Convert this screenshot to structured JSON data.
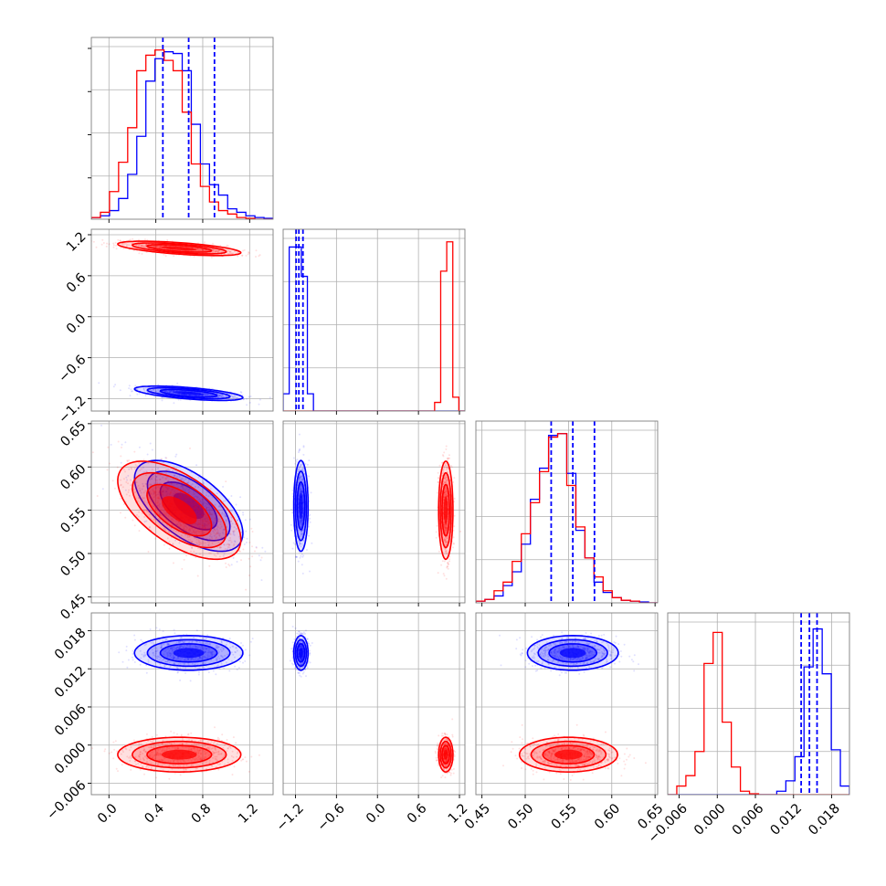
{
  "figure": {
    "type": "corner_plot",
    "colors": {
      "series_a": "#0000ff",
      "series_b": "#ff0000",
      "grid": "#b0b0b0",
      "frame": "#7f7f7f"
    }
  },
  "chart_data": {
    "type": "corner",
    "n_params": 4,
    "grid": true,
    "params": [
      {
        "range": [
          -0.15,
          1.4
        ],
        "ticks": [
          0.0,
          0.4,
          0.8,
          1.2
        ],
        "tick_labels": [
          "0.0",
          "0.4",
          "0.8",
          "1.2"
        ]
      },
      {
        "range": [
          -1.38,
          1.28
        ],
        "ticks": [
          -1.2,
          -0.6,
          0.0,
          0.6,
          1.2
        ],
        "tick_labels": [
          "−1.2",
          "−0.6",
          "0.0",
          "0.6",
          "1.2"
        ]
      },
      {
        "range": [
          0.443,
          0.653
        ],
        "ticks": [
          0.45,
          0.5,
          0.55,
          0.6,
          0.65
        ],
        "tick_labels": [
          "0.45",
          "0.50",
          "0.55",
          "0.60",
          "0.65"
        ]
      },
      {
        "range": [
          -0.0078,
          0.0208
        ],
        "ticks": [
          -0.006,
          0.0,
          0.006,
          0.012,
          0.018
        ],
        "tick_labels": [
          "−0.006",
          "0.000",
          "0.006",
          "0.012",
          "0.018"
        ]
      }
    ],
    "series": [
      {
        "color": "#0000ff",
        "means": [
          0.68,
          -1.12,
          0.555,
          0.0145
        ],
        "sds": [
          0.22,
          0.05,
          0.025,
          0.0013
        ],
        "corr": {
          "0-1": -0.6,
          "0-2": -0.6,
          "0-3": 0.0,
          "1-2": 0.0,
          "1-3": 0.0,
          "2-3": 0.0
        },
        "quantile_lines": [
          [
            0.46,
            0.68,
            0.9
          ],
          [
            -1.19,
            -1.15,
            -1.09
          ],
          [
            0.53,
            0.555,
            0.58
          ],
          [
            0.0132,
            0.0145,
            0.0157
          ]
        ],
        "hist": [
          {
            "bins": [
              -0.15,
              1.4
            ],
            "counts": [
              0.01,
              0.02,
              0.05,
              0.12,
              0.26,
              0.48,
              0.8,
              0.93,
              0.97,
              0.96,
              0.86,
              0.55,
              0.32,
              0.2,
              0.14,
              0.06,
              0.04,
              0.02,
              0.01,
              0.005
            ]
          },
          {
            "bins": [
              -1.38,
              1.28
            ],
            "counts": [
              0.1,
              0.95,
              0.95,
              0.78,
              0.1,
              0.0,
              0.0,
              0.0,
              0.0,
              0.0,
              0.0,
              0.0,
              0.0,
              0.0,
              0.0,
              0.0,
              0.0,
              0.0,
              0.0,
              0.0,
              0.0,
              0.0,
              0.0,
              0.0,
              0.0,
              0.0,
              0.0,
              0.0,
              0.0,
              0.0
            ]
          },
          {
            "bins": [
              0.443,
              0.653
            ],
            "counts": [
              0.01,
              0.02,
              0.04,
              0.1,
              0.18,
              0.34,
              0.6,
              0.78,
              0.97,
              0.98,
              0.75,
              0.42,
              0.26,
              0.12,
              0.06,
              0.03,
              0.015,
              0.01,
              0.005,
              0.0
            ]
          },
          {
            "bins": [
              -0.0078,
              0.0208
            ],
            "counts": [
              0,
              0,
              0,
              0,
              0,
              0,
              0,
              0,
              0,
              0,
              0,
              0,
              0.02,
              0.08,
              0.22,
              0.74,
              0.96,
              0.7,
              0.26,
              0.05
            ]
          }
        ]
      },
      {
        "color": "#ff0000",
        "means": [
          0.6,
          1.0,
          0.55,
          -0.0015
        ],
        "sds": [
          0.25,
          0.05,
          0.027,
          0.0013
        ],
        "corr": {
          "0-1": -0.6,
          "0-2": -0.6,
          "0-3": 0.0,
          "1-2": 0.0,
          "1-3": 0.0,
          "2-3": 0.0
        },
        "quantile_lines": null,
        "hist": [
          {
            "bins": [
              -0.15,
              1.4
            ],
            "counts": [
              0.01,
              0.04,
              0.16,
              0.33,
              0.53,
              0.86,
              0.95,
              0.98,
              0.92,
              0.86,
              0.62,
              0.32,
              0.19,
              0.1,
              0.05,
              0.03,
              0.01,
              0.005,
              0.0,
              0.0
            ]
          },
          {
            "bins": [
              -1.38,
              1.28
            ],
            "counts": [
              0,
              0,
              0,
              0,
              0,
              0,
              0,
              0,
              0,
              0,
              0,
              0,
              0,
              0,
              0,
              0,
              0,
              0,
              0,
              0,
              0,
              0,
              0,
              0,
              0,
              0.05,
              0.81,
              0.98,
              0.08,
              0.0
            ]
          },
          {
            "bins": [
              0.443,
              0.653
            ],
            "counts": [
              0.01,
              0.02,
              0.07,
              0.12,
              0.24,
              0.4,
              0.58,
              0.76,
              0.96,
              0.98,
              0.68,
              0.44,
              0.26,
              0.15,
              0.07,
              0.03,
              0.015,
              0.01,
              0.0,
              0.0
            ]
          },
          {
            "bins": [
              -0.0078,
              0.0208
            ],
            "counts": [
              0.0,
              0.05,
              0.11,
              0.25,
              0.76,
              0.94,
              0.42,
              0.16,
              0.02,
              0.005,
              0,
              0,
              0,
              0,
              0,
              0,
              0,
              0,
              0,
              0
            ]
          }
        ]
      }
    ]
  }
}
